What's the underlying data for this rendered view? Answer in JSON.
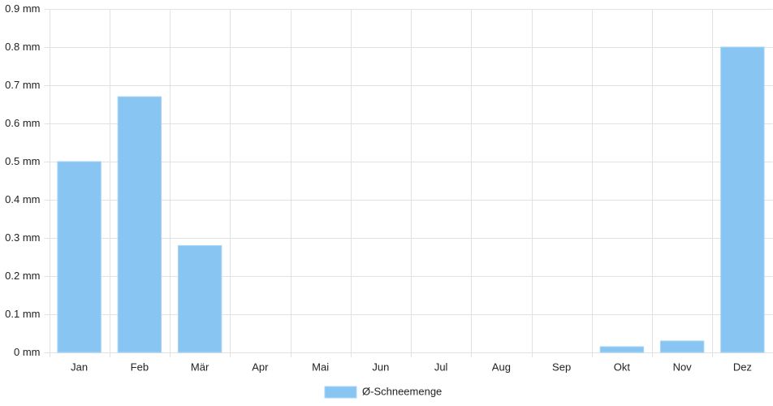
{
  "chart_data": {
    "type": "bar",
    "categories": [
      "Jan",
      "Feb",
      "Mär",
      "Apr",
      "Mai",
      "Jun",
      "Jul",
      "Aug",
      "Sep",
      "Okt",
      "Nov",
      "Dez"
    ],
    "series": [
      {
        "name": "Ø-Schneemenge",
        "color": "#88c5f2",
        "values": [
          0.5,
          0.67,
          0.28,
          0,
          0,
          0,
          0,
          0,
          0,
          0.015,
          0.03,
          0.8
        ]
      }
    ],
    "ylim": [
      0,
      0.9
    ],
    "yticks": [
      {
        "value": 0,
        "label": "0 mm"
      },
      {
        "value": 0.1,
        "label": "0.1 mm"
      },
      {
        "value": 0.2,
        "label": "0.2 mm"
      },
      {
        "value": 0.3,
        "label": "0.3 mm"
      },
      {
        "value": 0.4,
        "label": "0.4 mm"
      },
      {
        "value": 0.5,
        "label": "0.5 mm"
      },
      {
        "value": 0.6,
        "label": "0.6 mm"
      },
      {
        "value": 0.7,
        "label": "0.7 mm"
      },
      {
        "value": 0.8,
        "label": "0.8 mm"
      },
      {
        "value": 0.9,
        "label": "0.9 mm"
      }
    ],
    "grid": true,
    "legend": "bottom"
  }
}
